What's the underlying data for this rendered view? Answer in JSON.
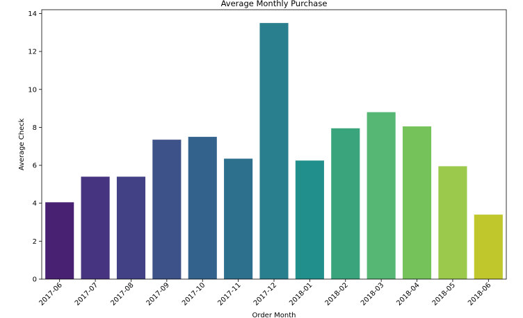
{
  "chart_data": {
    "type": "bar",
    "title": "Average Monthly Purchase",
    "xlabel": "Order Month",
    "ylabel": "Average Check",
    "categories": [
      "2017-06",
      "2017-07",
      "2017-08",
      "2017-09",
      "2017-10",
      "2017-11",
      "2017-12",
      "2018-01",
      "2018-02",
      "2018-03",
      "2018-04",
      "2018-05",
      "2018-06"
    ],
    "values": [
      4.05,
      5.4,
      5.4,
      7.35,
      7.5,
      6.35,
      13.5,
      6.25,
      7.95,
      8.8,
      8.05,
      5.95,
      3.4
    ],
    "colors": [
      "#482173",
      "#463480",
      "#424186",
      "#3d5289",
      "#33638d",
      "#2d708e",
      "#2a7f8e",
      "#21908d",
      "#3aa47c",
      "#56b673",
      "#76c25a",
      "#9ac94b",
      "#bfc72c"
    ],
    "ylim": [
      0,
      14.2
    ],
    "yticks": [
      0,
      2,
      4,
      6,
      8,
      10,
      12,
      14
    ],
    "x_tick_rotation": 45,
    "grid": false,
    "legend": "none"
  }
}
